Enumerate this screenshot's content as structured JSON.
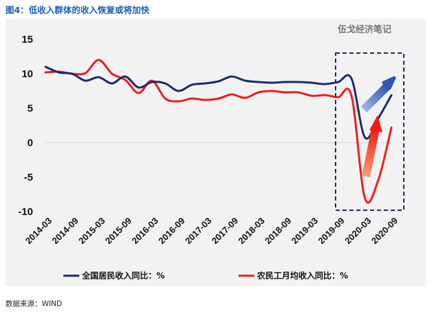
{
  "figure_title": "图4：低收入群体的收入恢复或将加快",
  "watermark": "伍戈经济笔记",
  "source": "数据来源：WIND",
  "colors": {
    "series1": "#1b2a6b",
    "series2": "#ee1c1c",
    "title": "#1a5fb4",
    "box": "#1b2a6b"
  },
  "chart_data": {
    "type": "line",
    "ylim": [
      -10,
      15
    ],
    "yticks": [
      -10,
      -5,
      0,
      5,
      10,
      15
    ],
    "grid": false,
    "legend_position": "bottom",
    "x_tick_labels": [
      "2014-03",
      "2014-09",
      "2015-03",
      "2015-09",
      "2016-03",
      "2016-09",
      "2017-03",
      "2017-09",
      "2018-03",
      "2018-09",
      "2019-03",
      "2019-09",
      "2020-03",
      "2020-09"
    ],
    "series": [
      {
        "name": "全国居民收入同比：%",
        "color": "#1b2a6b",
        "x": [
          "2014-03",
          "2014-06",
          "2014-09",
          "2014-12",
          "2015-03",
          "2015-06",
          "2015-09",
          "2015-12",
          "2016-03",
          "2016-06",
          "2016-09",
          "2016-12",
          "2017-03",
          "2017-06",
          "2017-09",
          "2017-12",
          "2018-03",
          "2018-06",
          "2018-09",
          "2018-12",
          "2019-03",
          "2019-06",
          "2019-09",
          "2019-12",
          "2020-03",
          "2020-06",
          "2020-09"
        ],
        "values": [
          11.0,
          10.2,
          10.0,
          9.0,
          9.5,
          8.6,
          9.6,
          8.0,
          8.8,
          8.6,
          7.5,
          8.4,
          8.6,
          8.9,
          9.6,
          9.0,
          8.8,
          8.7,
          8.8,
          8.8,
          8.7,
          8.5,
          8.8,
          9.3,
          0.8,
          3.5,
          6.9
        ]
      },
      {
        "name": "农民工月均收入同比：%",
        "color": "#ee1c1c",
        "x": [
          "2014-03",
          "2014-06",
          "2014-09",
          "2014-12",
          "2015-03",
          "2015-06",
          "2015-09",
          "2015-12",
          "2016-03",
          "2016-06",
          "2016-09",
          "2016-12",
          "2017-03",
          "2017-06",
          "2017-09",
          "2017-12",
          "2018-03",
          "2018-06",
          "2018-09",
          "2018-12",
          "2019-03",
          "2019-06",
          "2019-09",
          "2019-12",
          "2020-03",
          "2020-06",
          "2020-09"
        ],
        "values": [
          10.2,
          10.3,
          10.0,
          10.1,
          12.0,
          10.0,
          9.1,
          7.2,
          9.0,
          6.4,
          6.0,
          6.4,
          6.2,
          6.4,
          7.0,
          6.5,
          7.3,
          7.5,
          7.3,
          7.3,
          6.8,
          6.9,
          6.6,
          6.8,
          -8.0,
          -5.5,
          2.2
        ]
      }
    ]
  }
}
